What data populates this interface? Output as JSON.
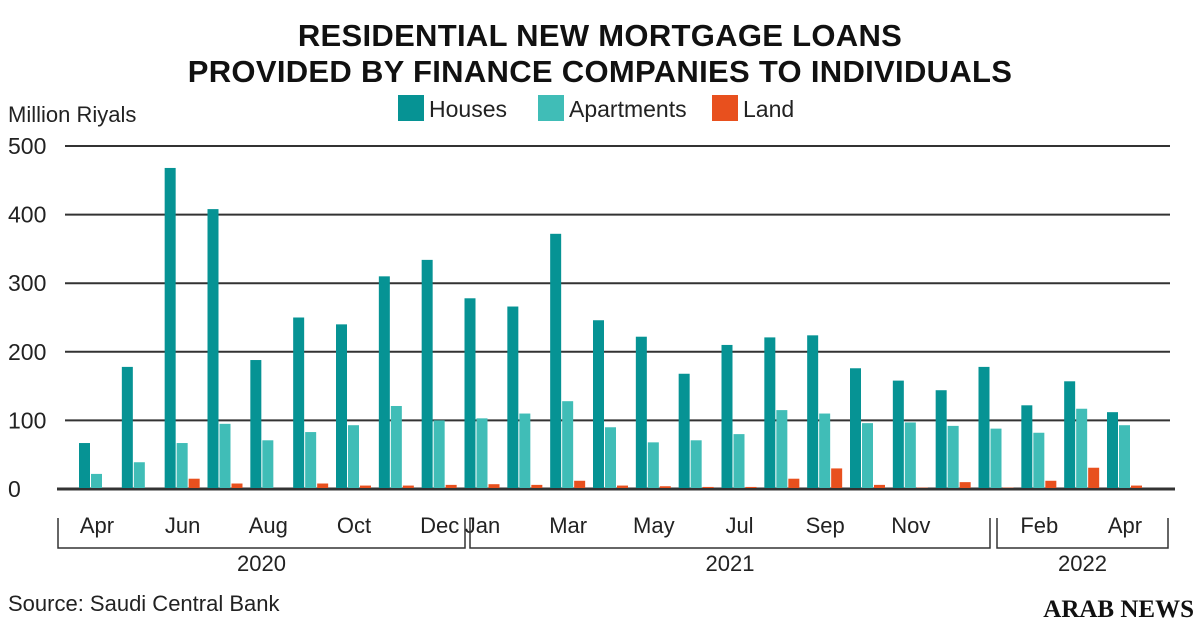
{
  "chart_data": {
    "type": "bar",
    "title": [
      "RESIDENTIAL NEW MORTGAGE LOANS",
      "PROVIDED BY FINANCE COMPANIES TO INDIVIDUALS"
    ],
    "ylabel": "Million Riyals",
    "xlabel": "",
    "ylim": [
      0,
      500
    ],
    "yticks": [
      0,
      100,
      200,
      300,
      400,
      500
    ],
    "grid": true,
    "legend_position": "top-center",
    "categories": [
      "Apr 2020",
      "May 2020",
      "Jun 2020",
      "Jul 2020",
      "Aug 2020",
      "Sep 2020",
      "Oct 2020",
      "Nov 2020",
      "Dec 2020",
      "Jan 2021",
      "Feb 2021",
      "Mar 2021",
      "Apr 2021",
      "May 2021",
      "Jun 2021",
      "Jul 2021",
      "Aug 2021",
      "Sep 2021",
      "Oct 2021",
      "Nov 2021",
      "Dec 2021",
      "Jan 2022",
      "Feb 2022",
      "Mar 2022",
      "Apr 2022"
    ],
    "tick_labels": [
      {
        "index": 0,
        "label": "Apr"
      },
      {
        "index": 2,
        "label": "Jun"
      },
      {
        "index": 4,
        "label": "Aug"
      },
      {
        "index": 6,
        "label": "Oct"
      },
      {
        "index": 8,
        "label": "Dec"
      },
      {
        "index": 9,
        "label": "Jan"
      },
      {
        "index": 11,
        "label": "Mar"
      },
      {
        "index": 13,
        "label": "May"
      },
      {
        "index": 15,
        "label": "Jul"
      },
      {
        "index": 17,
        "label": "Sep"
      },
      {
        "index": 19,
        "label": "Nov"
      },
      {
        "index": 22,
        "label": "Feb"
      },
      {
        "index": 24,
        "label": "Apr"
      }
    ],
    "years": [
      {
        "label": "2020",
        "from": 0,
        "to": 8
      },
      {
        "label": "2021",
        "from": 9,
        "to": 20
      },
      {
        "label": "2022",
        "from": 21,
        "to": 24
      }
    ],
    "series": [
      {
        "name": "Houses",
        "color": "#069394",
        "values": [
          67,
          178,
          468,
          408,
          188,
          250,
          240,
          310,
          334,
          278,
          266,
          372,
          246,
          222,
          168,
          210,
          221,
          224,
          176,
          158,
          144,
          178,
          122,
          157,
          112
        ]
      },
      {
        "name": "Apartments",
        "color": "#40bdb7",
        "values": [
          22,
          39,
          67,
          95,
          71,
          83,
          93,
          121,
          100,
          103,
          110,
          128,
          90,
          68,
          71,
          80,
          115,
          110,
          96,
          97,
          92,
          88,
          82,
          117,
          93
        ]
      },
      {
        "name": "Land",
        "color": "#e8501e",
        "values": [
          0,
          0,
          15,
          8,
          0,
          8,
          5,
          5,
          6,
          7,
          6,
          12,
          5,
          4,
          3,
          3,
          15,
          30,
          6,
          2,
          10,
          2,
          12,
          31,
          5
        ]
      }
    ]
  },
  "source": "Source: Saudi Central Bank",
  "brand": "ARAB NEWS"
}
